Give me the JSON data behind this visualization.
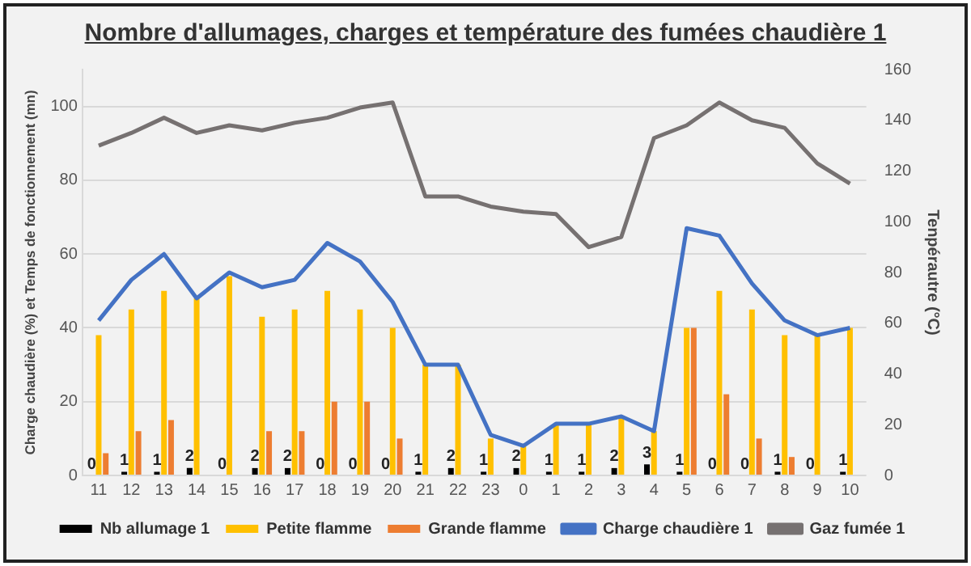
{
  "chart_data": {
    "type": "bar",
    "title": "Nombre d'allumages, charges et température des fumées chaudière 1",
    "ylabel": "Charge chaudière (%) et Temps de fonctionnement (mn)",
    "y2label": "Tenpérautre (°C)",
    "categories": [
      "11",
      "12",
      "13",
      "14",
      "15",
      "16",
      "17",
      "18",
      "19",
      "20",
      "21",
      "22",
      "23",
      "0",
      "1",
      "2",
      "3",
      "4",
      "5",
      "6",
      "7",
      "8",
      "9",
      "10"
    ],
    "series": [
      {
        "name": "Nb allumage 1",
        "color": "#000000",
        "values": [
          0,
          1,
          1,
          2,
          0,
          2,
          2,
          0,
          0,
          0,
          1,
          2,
          1,
          2,
          1,
          1,
          2,
          3,
          1,
          0,
          0,
          1,
          0,
          1
        ],
        "value_labels": [
          "0",
          "1",
          "1",
          "2",
          "0",
          "2",
          "2",
          "0",
          "0",
          "0",
          "1",
          "2",
          "1",
          "2",
          "1",
          "1",
          "2",
          "3",
          "1",
          "0",
          "0",
          "1",
          "0",
          "1"
        ]
      },
      {
        "name": "Petite flamme",
        "color": "#ffc000",
        "values": [
          38,
          45,
          50,
          48,
          54,
          43,
          45,
          50,
          45,
          40,
          30,
          30,
          10,
          8,
          14,
          14,
          16,
          12,
          40,
          50,
          45,
          38,
          38,
          40
        ]
      },
      {
        "name": "Grande flamme",
        "color": "#ed7d31",
        "values": [
          6,
          12,
          15,
          0,
          0,
          12,
          12,
          20,
          20,
          10,
          0,
          0,
          0,
          0,
          0,
          0,
          0,
          0,
          40,
          22,
          10,
          5,
          0,
          0
        ]
      },
      {
        "name": "Charge chaudière 1",
        "type": "line",
        "color": "#4472c4",
        "values": [
          42,
          53,
          60,
          48,
          55,
          51,
          53,
          63,
          58,
          47,
          30,
          30,
          11,
          8,
          14,
          14,
          16,
          12,
          67,
          65,
          52,
          42,
          38,
          40
        ]
      },
      {
        "name": "Gaz fumée 1",
        "type": "line",
        "color": "#767171",
        "axis": "y2",
        "values": [
          130,
          135,
          141,
          135,
          138,
          136,
          139,
          141,
          145,
          147,
          110,
          110,
          106,
          104,
          103,
          90,
          94,
          133,
          138,
          147,
          140,
          137,
          123,
          115
        ]
      }
    ],
    "ylim": [
      0,
      110
    ],
    "yticks": [
      0,
      20,
      40,
      60,
      80,
      100
    ],
    "y2lim": [
      0,
      160
    ],
    "y2ticks": [
      0,
      20,
      40,
      60,
      80,
      100,
      120,
      140,
      160
    ],
    "grid": "y",
    "legend": "bottom",
    "marker": "none",
    "line_style": "solid"
  }
}
